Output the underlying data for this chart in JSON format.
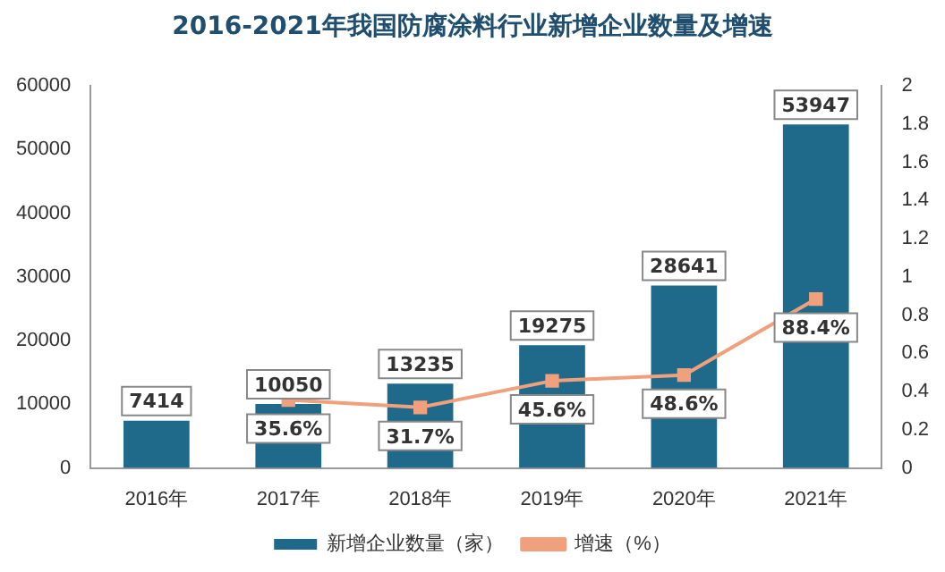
{
  "chart_data": {
    "type": "bar",
    "title": "2016-2021年我国防腐涂料行业新增企业数量及增速",
    "categories": [
      "2016年",
      "2017年",
      "2018年",
      "2019年",
      "2020年",
      "2021年"
    ],
    "series": [
      {
        "name": "新增企业数量（家）",
        "color": "#1f6a8a",
        "values": [
          7414,
          10050,
          13235,
          19275,
          28641,
          53947
        ],
        "data_labels": true
      },
      {
        "name": "增速（%）",
        "type": "line",
        "axis": "y2",
        "color": "#f0a07c",
        "marker": "square",
        "values": [
          null,
          0.356,
          0.317,
          0.456,
          0.486,
          0.884
        ],
        "value_labels": [
          null,
          "35.6%",
          "31.7%",
          "45.6%",
          "48.6%",
          "88.4%"
        ]
      }
    ],
    "ylim": [
      0,
      60000
    ],
    "yticks": [
      0,
      10000,
      20000,
      30000,
      40000,
      50000,
      60000
    ],
    "y2lim": [
      0,
      2
    ],
    "y2ticks": [
      0,
      0.2,
      0.4,
      0.6,
      0.8,
      1,
      1.2,
      1.4,
      1.6,
      1.8,
      2
    ],
    "legend": "bottom"
  }
}
